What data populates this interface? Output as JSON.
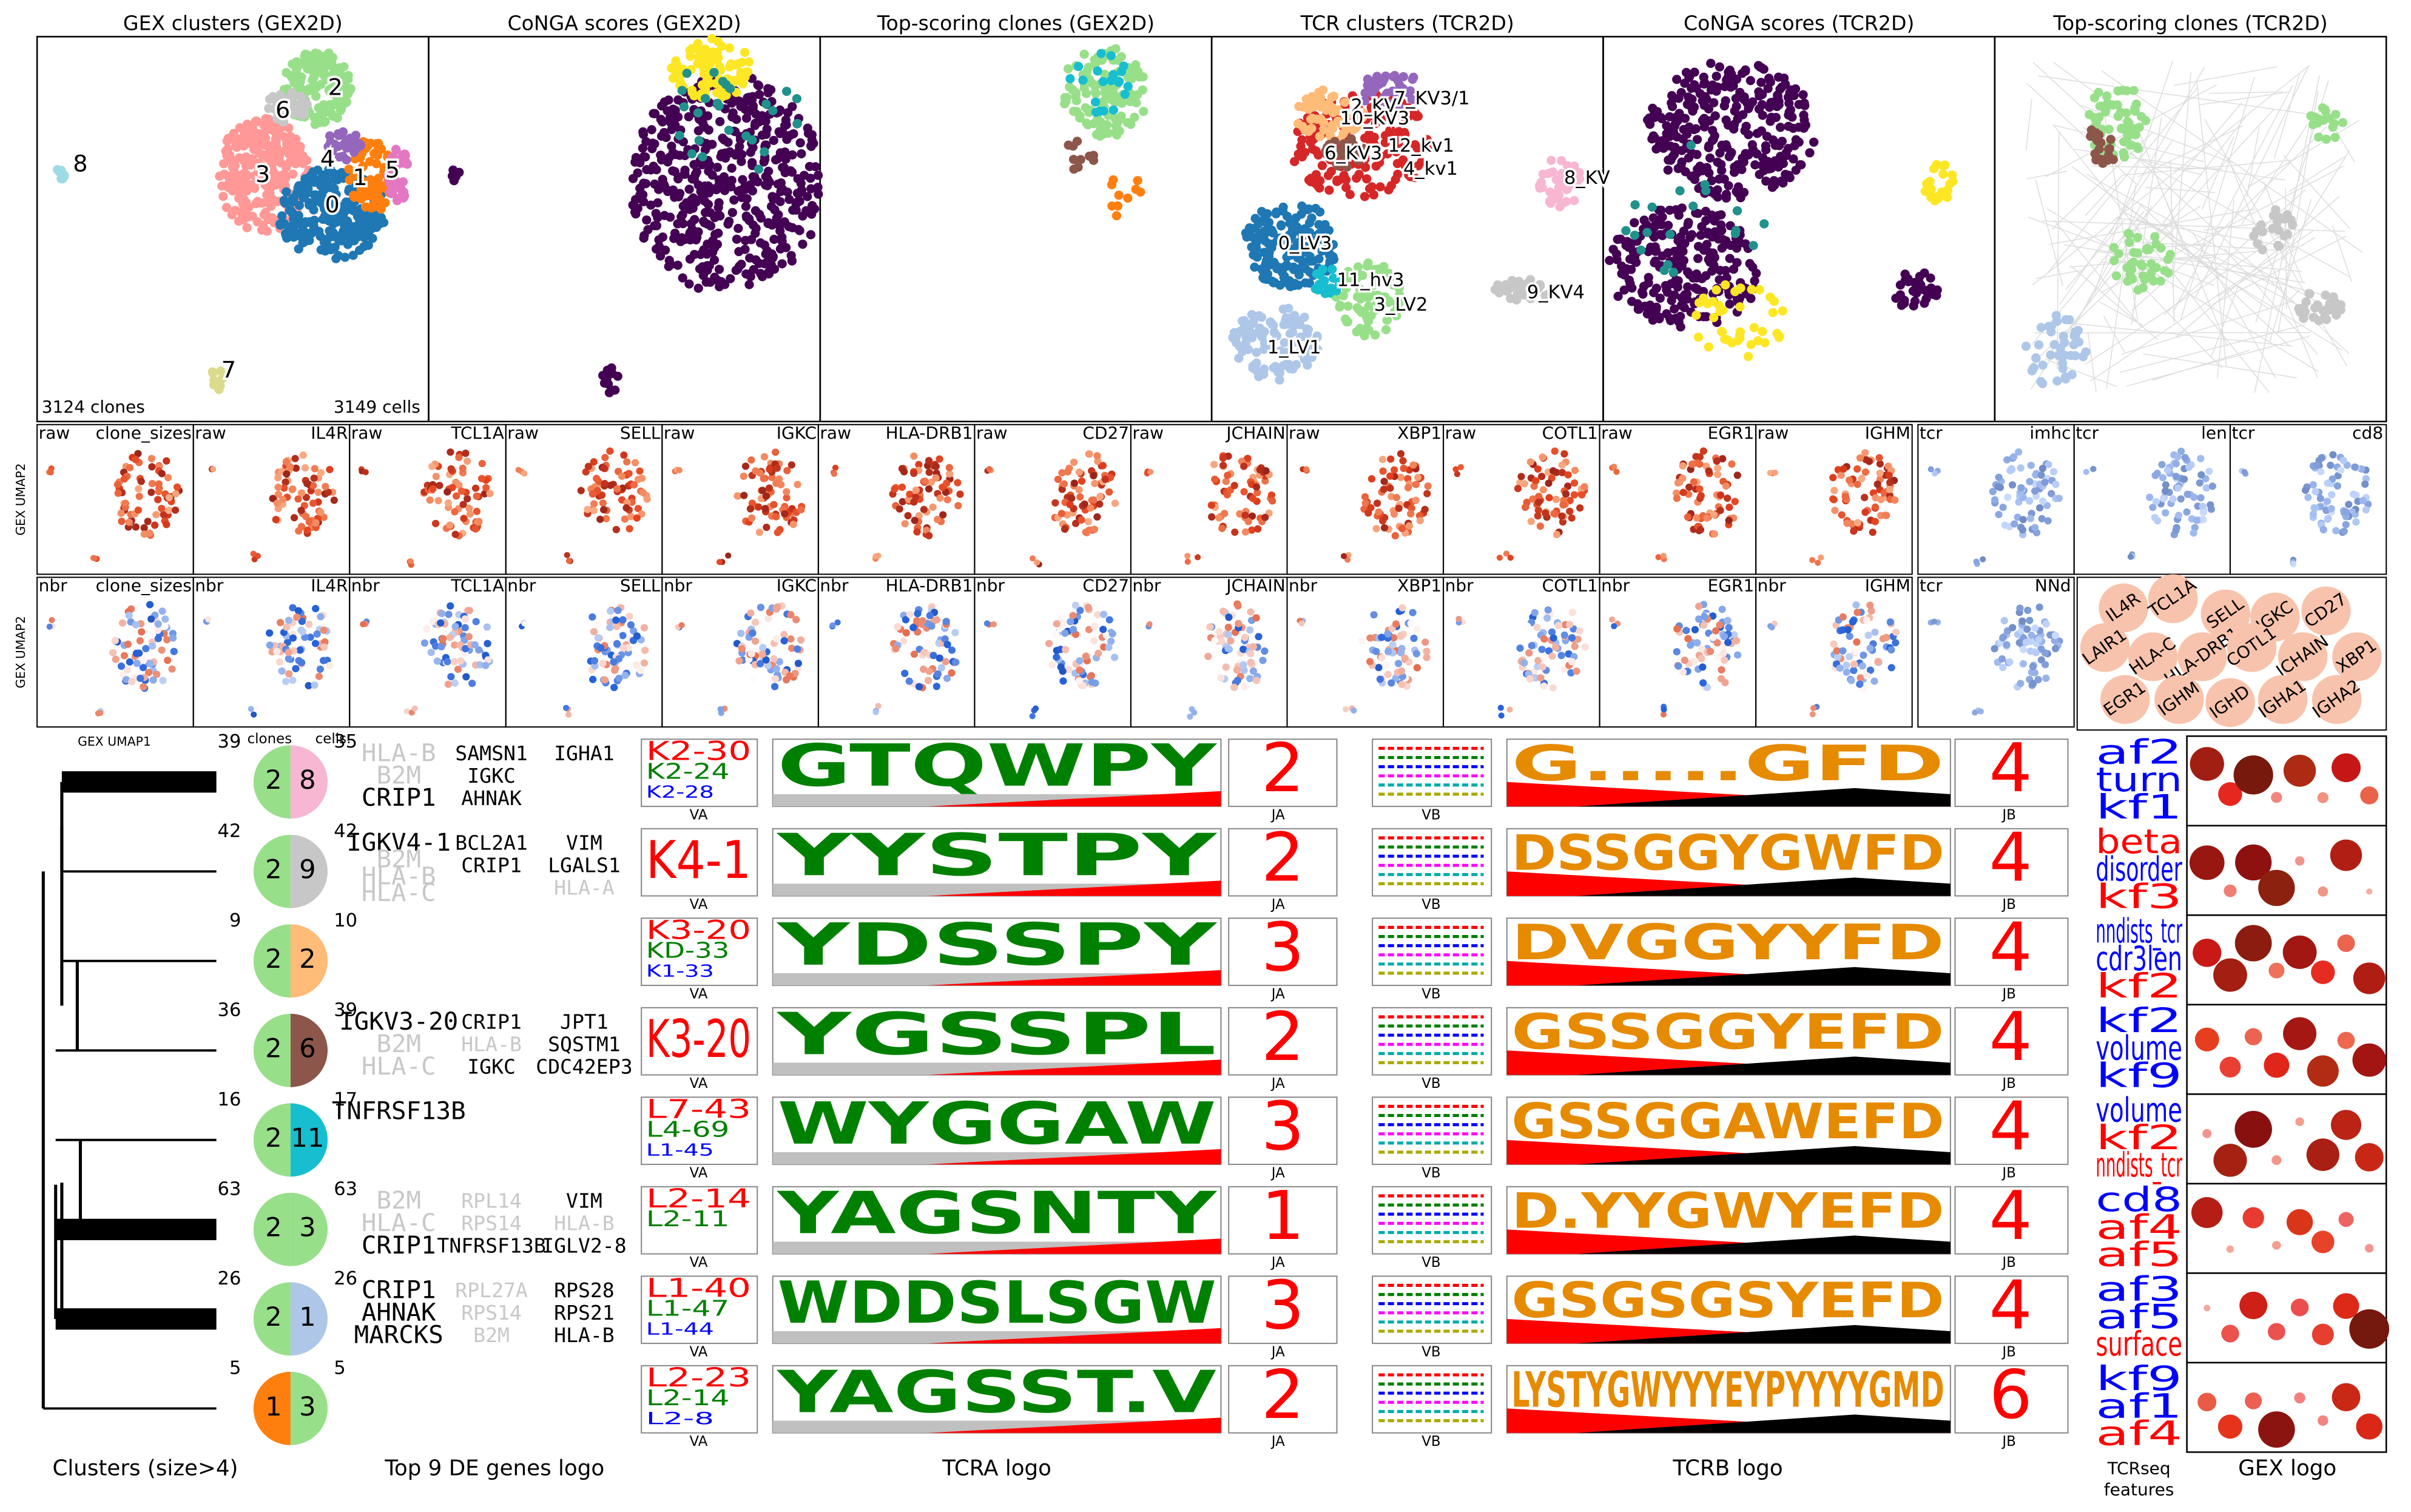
{
  "top_panels": [
    {
      "title": "GEX clusters (GEX2D)"
    },
    {
      "title": "CoNGA scores (GEX2D)"
    },
    {
      "title": "Top-scoring clones (GEX2D)"
    },
    {
      "title": "TCR clusters (TCR2D)"
    },
    {
      "title": "CoNGA scores (TCR2D)"
    },
    {
      "title": "Top-scoring clones (TCR2D)"
    }
  ],
  "gex_notes": {
    "clones": "3124 clones",
    "cells": "3149 cells"
  },
  "gex_cluster_labels": [
    "0",
    "1",
    "2",
    "3",
    "4",
    "5",
    "6",
    "7",
    "8"
  ],
  "tcr_cluster_labels": [
    "0_LV3",
    "1_LV1",
    "2_KV",
    "3_LV2",
    "4_kv1",
    "6_KV3",
    "7_KV3/1",
    "8_KV",
    "9_KV4",
    "10_KV3",
    "11_hv3",
    "12_kv1"
  ],
  "umap_rows": [
    [
      [
        "raw",
        "clone_sizes"
      ],
      [
        "raw",
        "IL4R"
      ],
      [
        "raw",
        "TCL1A"
      ],
      [
        "raw",
        "SELL"
      ],
      [
        "raw",
        "IGKC"
      ],
      [
        "raw",
        "HLA-DRB1"
      ],
      [
        "raw",
        "CD27"
      ],
      [
        "raw",
        "JCHAIN"
      ],
      [
        "raw",
        "XBP1"
      ],
      [
        "raw",
        "COTL1"
      ],
      [
        "raw",
        "EGR1"
      ],
      [
        "raw",
        "IGHM"
      ],
      [
        "tcr",
        "imhc"
      ],
      [
        "tcr",
        "len"
      ],
      [
        "tcr",
        "cd8"
      ]
    ],
    [
      [
        "nbr",
        "clone_sizes"
      ],
      [
        "nbr",
        "IL4R"
      ],
      [
        "nbr",
        "TCL1A"
      ],
      [
        "nbr",
        "SELL"
      ],
      [
        "nbr",
        "IGKC"
      ],
      [
        "nbr",
        "HLA-DRB1"
      ],
      [
        "nbr",
        "CD27"
      ],
      [
        "nbr",
        "JCHAIN"
      ],
      [
        "nbr",
        "XBP1"
      ],
      [
        "nbr",
        "COTL1"
      ],
      [
        "nbr",
        "EGR1"
      ],
      [
        "nbr",
        "IGHM"
      ],
      [
        "tcr",
        "NNd"
      ]
    ]
  ],
  "y_axis_label": "GEX UMAP2",
  "x_axis_label": "GEX UMAP1",
  "gene_bubbles": [
    "IL4R",
    "TCL1A",
    "SELL",
    "IGKC",
    "CD27",
    "LAIR1",
    "HLA-C",
    "HLA-DRB1",
    "COTL1",
    "JCHAIN",
    "XBP1",
    "EGR1",
    "IGHM",
    "IGHD",
    "IGHA1",
    "IGHA2"
  ],
  "col_headers": {
    "clones": "clones",
    "cells": "cells:"
  },
  "clusters": [
    {
      "clones": 39,
      "cells": 35,
      "gex": "2",
      "tcr": "8",
      "tcr_color": "#f7b6d2",
      "de": [
        [
          {
            "text": "HLA-B",
            "color": "#c8c8c8"
          },
          {
            "text": "B2M",
            "color": "#c8c8c8"
          },
          {
            "text": "CRIP1",
            "color": "#000000"
          }
        ],
        [
          {
            "text": "SAMSN1",
            "color": "#000000"
          },
          {
            "text": "IGKC",
            "color": "#000000"
          },
          {
            "text": "AHNAK",
            "color": "#000000"
          }
        ],
        [
          {
            "text": "IGHA1",
            "color": "#000000"
          }
        ]
      ],
      "va": [
        "K2-30",
        "K2-24",
        "K2-28"
      ],
      "ja": "2",
      "jb": "4",
      "cdr3a": "GTQWPY",
      "cdr3b": "G.....GFD",
      "features": [
        {
          "text": "af2",
          "color": "#0000ff"
        },
        {
          "text": "turn",
          "color": "#0000ff"
        },
        {
          "text": "kf1",
          "color": "#0000ff"
        }
      ]
    },
    {
      "clones": 42,
      "cells": 42,
      "gex": "2",
      "tcr": "9",
      "tcr_color": "#c7c7c7",
      "de": [
        [
          {
            "text": "IGKV4-1",
            "color": "#000000"
          },
          {
            "text": "B2M",
            "color": "#c8c8c8"
          },
          {
            "text": "HLA-B",
            "color": "#c8c8c8"
          },
          {
            "text": "HLA-C",
            "color": "#c8c8c8"
          }
        ],
        [
          {
            "text": "BCL2A1",
            "color": "#000000"
          },
          {
            "text": "CRIP1",
            "color": "#000000"
          }
        ],
        [
          {
            "text": "VIM",
            "color": "#000000"
          },
          {
            "text": "LGALS1",
            "color": "#000000"
          },
          {
            "text": "HLA-A",
            "color": "#c8c8c8"
          }
        ]
      ],
      "va": [
        "K4-1"
      ],
      "ja": "2",
      "jb": "4",
      "cdr3a": "YYSTPY",
      "cdr3b": "DSSGGYGWFD",
      "features": [
        {
          "text": "beta",
          "color": "#ff0000"
        },
        {
          "text": "disorder",
          "color": "#0000ff"
        },
        {
          "text": "kf3",
          "color": "#ff0000"
        }
      ]
    },
    {
      "clones": 9,
      "cells": 10,
      "gex": "2",
      "tcr": "2",
      "tcr_color": "#ffbb78",
      "de": [
        [],
        [],
        []
      ],
      "va": [
        "K3-20",
        "KD-33",
        "K1-33"
      ],
      "ja": "3",
      "jb": "4",
      "cdr3a": "YDSSPY",
      "cdr3b": "DVGGYYFD",
      "features": [
        {
          "text": "nndists_tcr",
          "color": "#0000ff"
        },
        {
          "text": "cdr3len",
          "color": "#0000ff"
        },
        {
          "text": "kf2",
          "color": "#ff0000"
        }
      ]
    },
    {
      "clones": 36,
      "cells": 39,
      "gex": "2",
      "tcr": "6",
      "tcr_color": "#8c564b",
      "de": [
        [
          {
            "text": "IGKV3-20",
            "color": "#000000"
          },
          {
            "text": "B2M",
            "color": "#c8c8c8"
          },
          {
            "text": "HLA-C",
            "color": "#c8c8c8"
          }
        ],
        [
          {
            "text": "CRIP1",
            "color": "#000000"
          },
          {
            "text": "HLA-B",
            "color": "#c8c8c8"
          },
          {
            "text": "IGKC",
            "color": "#000000"
          }
        ],
        [
          {
            "text": "JPT1",
            "color": "#000000"
          },
          {
            "text": "SQSTM1",
            "color": "#000000"
          },
          {
            "text": "CDC42EP3",
            "color": "#000000"
          }
        ]
      ],
      "va": [
        "K3-20"
      ],
      "ja": "2",
      "jb": "4",
      "cdr3a": "YGSSPL",
      "cdr3b": "GSSGGYEFD",
      "features": [
        {
          "text": "kf2",
          "color": "#0000ff"
        },
        {
          "text": "volume",
          "color": "#0000ff"
        },
        {
          "text": "kf9",
          "color": "#0000ff"
        }
      ]
    },
    {
      "clones": 16,
      "cells": 17,
      "gex": "2",
      "tcr": "11",
      "tcr_color": "#17becf",
      "de": [
        [
          {
            "text": "TNFRSF13B",
            "color": "#000000"
          }
        ],
        [],
        []
      ],
      "va": [
        "L7-43",
        "L4-69",
        "L1-45"
      ],
      "ja": "3",
      "jb": "4",
      "cdr3a": "WYGGAW",
      "cdr3b": "GSSGGAWEFD",
      "features": [
        {
          "text": "volume",
          "color": "#0000ff"
        },
        {
          "text": "kf2",
          "color": "#ff0000"
        },
        {
          "text": "nndists_tcr",
          "color": "#ff0000"
        }
      ]
    },
    {
      "clones": 63,
      "cells": 63,
      "gex": "2",
      "tcr": "3",
      "tcr_color": "#98df8a",
      "de": [
        [
          {
            "text": "B2M",
            "color": "#c8c8c8"
          },
          {
            "text": "HLA-C",
            "color": "#c8c8c8"
          },
          {
            "text": "CRIP1",
            "color": "#000000"
          }
        ],
        [
          {
            "text": "RPL14",
            "color": "#c8c8c8"
          },
          {
            "text": "RPS14",
            "color": "#c8c8c8"
          },
          {
            "text": "TNFRSF13B",
            "color": "#000000"
          }
        ],
        [
          {
            "text": "VIM",
            "color": "#000000"
          },
          {
            "text": "HLA-B",
            "color": "#c8c8c8"
          },
          {
            "text": "IGLV2-8",
            "color": "#000000"
          }
        ]
      ],
      "va": [
        "L2-14",
        "L2-11"
      ],
      "ja": "1",
      "jb": "4",
      "cdr3a": "YAGSNTY",
      "cdr3b": "D.YYGWYEFD",
      "features": [
        {
          "text": "cd8",
          "color": "#0000ff"
        },
        {
          "text": "af4",
          "color": "#ff0000"
        },
        {
          "text": "af5",
          "color": "#ff0000"
        }
      ]
    },
    {
      "clones": 26,
      "cells": 26,
      "gex": "2",
      "tcr": "1",
      "tcr_color": "#aec7e8",
      "de": [
        [
          {
            "text": "CRIP1",
            "color": "#000000"
          },
          {
            "text": "AHNAK",
            "color": "#000000"
          },
          {
            "text": "MARCKS",
            "color": "#000000"
          }
        ],
        [
          {
            "text": "RPL27A",
            "color": "#c8c8c8"
          },
          {
            "text": "RPS14",
            "color": "#c8c8c8"
          },
          {
            "text": "B2M",
            "color": "#c8c8c8"
          }
        ],
        [
          {
            "text": "RPS28",
            "color": "#000000"
          },
          {
            "text": "RPS21",
            "color": "#000000"
          },
          {
            "text": "HLA-B",
            "color": "#000000"
          }
        ]
      ],
      "va": [
        "L1-40",
        "L1-47",
        "L1-44"
      ],
      "ja": "3",
      "jb": "4",
      "cdr3a": "WDDSLSGW",
      "cdr3b": "GSGSGSYEFD",
      "features": [
        {
          "text": "af3",
          "color": "#0000ff"
        },
        {
          "text": "af5",
          "color": "#0000ff"
        },
        {
          "text": "surface",
          "color": "#ff0000"
        }
      ]
    },
    {
      "clones": 5,
      "cells": 5,
      "gex": "1",
      "gex_color": "#ff7f0e",
      "tcr": "3",
      "tcr_color": "#98df8a",
      "de": [
        [],
        [],
        []
      ],
      "va": [
        "L2-23",
        "L2-14",
        "L2-8"
      ],
      "ja": "2",
      "jb": "6",
      "cdr3a": "YAGSST.V",
      "cdr3b": "LYSTYGWYYYEYPYYYYGMD",
      "features": [
        {
          "text": "kf9",
          "color": "#0000ff"
        },
        {
          "text": "af1",
          "color": "#0000ff"
        },
        {
          "text": "af4",
          "color": "#ff0000"
        }
      ]
    }
  ],
  "axis_labels": {
    "va": "VA",
    "ja": "JA",
    "vb": "VB",
    "jb": "JB"
  },
  "footer": {
    "clusters": "Clusters (size>4)",
    "de": "Top 9 DE genes logo",
    "tcra": "TCRA logo",
    "tcrb": "TCRB logo",
    "features": [
      "TCRseq",
      "features"
    ],
    "gex": "GEX logo"
  }
}
